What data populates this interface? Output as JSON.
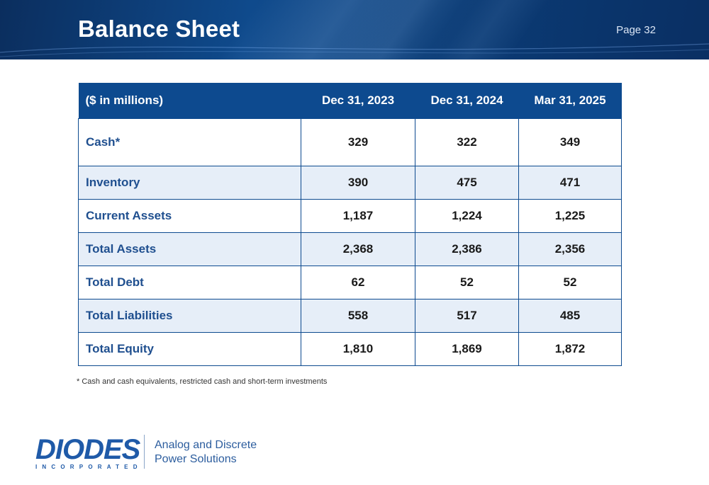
{
  "header": {
    "title": "Balance Sheet",
    "page": "Page 32"
  },
  "table": {
    "columns": [
      "($ in millions)",
      "Dec 31, 2023",
      "Dec 31, 2024",
      "Mar 31, 2025"
    ],
    "rows": [
      {
        "label": "Cash*",
        "values": [
          "329",
          "322",
          "349"
        ]
      },
      {
        "label": "Inventory",
        "values": [
          "390",
          "475",
          "471"
        ]
      },
      {
        "label": "Current Assets",
        "values": [
          "1,187",
          "1,224",
          "1,225"
        ]
      },
      {
        "label": "Total Assets",
        "values": [
          "2,368",
          "2,386",
          "2,356"
        ]
      },
      {
        "label": "Total Debt",
        "values": [
          "62",
          "52",
          "52"
        ]
      },
      {
        "label": "Total Liabilities",
        "values": [
          "558",
          "517",
          "485"
        ]
      },
      {
        "label": "Total Equity",
        "values": [
          "1,810",
          "1,869",
          "1,872"
        ]
      }
    ]
  },
  "footnote": "* Cash and cash equivalents, restricted cash and short-term investments",
  "logo": {
    "name": "DIODES",
    "sub": "INCORPORATED",
    "tagline_line1": "Analog and Discrete",
    "tagline_line2": "Power Solutions"
  },
  "colors": {
    "header_blue": "#0d4a8f",
    "row_shade": "#e6eef8",
    "label_blue": "#1f4f8f"
  }
}
